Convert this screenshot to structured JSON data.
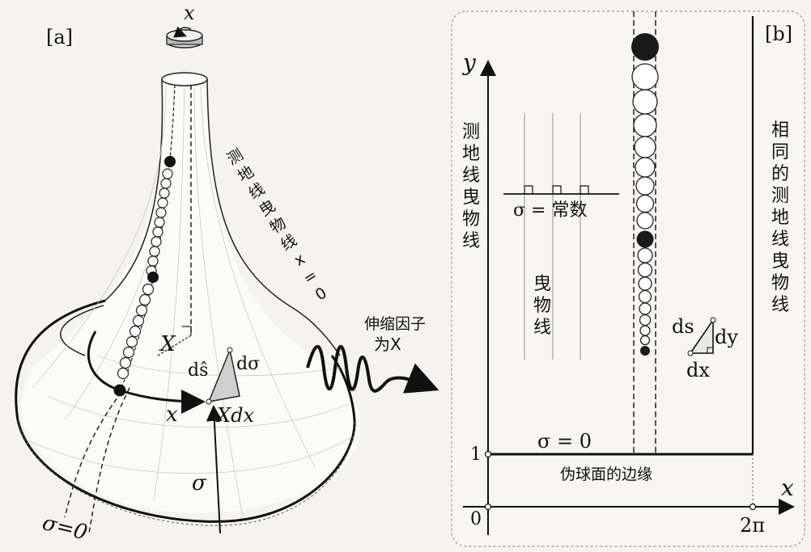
{
  "panel_a": {
    "label": "[a]",
    "rotation_axis_label": "x",
    "geodesic_label": "测地线曳物线x=0",
    "X_label": "X",
    "ds_label": "dŝ",
    "dsigma_label": "dσ",
    "x_arrow_label": "x",
    "Xdx_label": "Xdx",
    "sigma_label": "σ",
    "sigma_zero_label": "σ=0"
  },
  "middle": {
    "scale_factor_label": "伸缩因子",
    "scale_factor_label2": "为X"
  },
  "panel_b": {
    "label": "[b]",
    "y_axis_label": "y",
    "x_axis_label": "x",
    "left_vertical_text": "测地线曳物线",
    "right_vertical_text": "相同的测地线曳物线",
    "sigma_const_label": "σ = 常数",
    "tractrix_text": "曳物线",
    "ds_label": "ds",
    "dy_label": "dy",
    "dx_label": "dx",
    "sigma_zero_label": "σ = 0",
    "tick_one": "1",
    "tick_zero": "0",
    "tick_two_pi": "2π",
    "boundary_label": "伪球面的边缘"
  }
}
